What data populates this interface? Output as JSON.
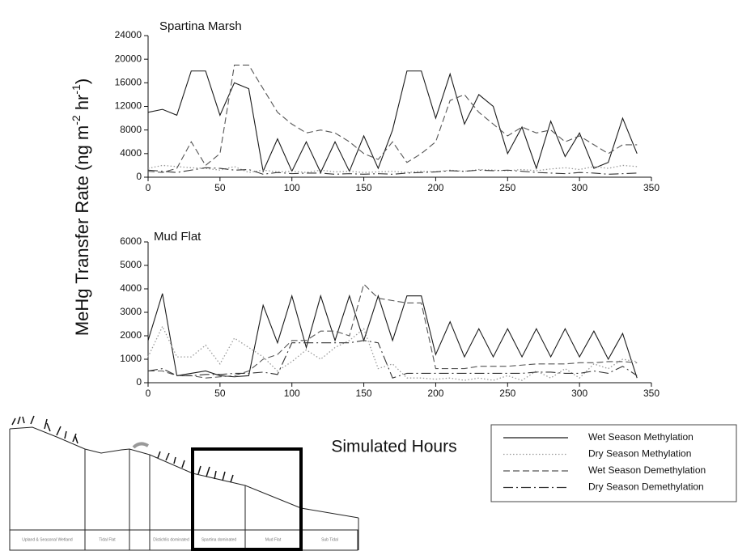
{
  "chart_data": [
    {
      "type": "line",
      "title": "Spartina Marsh",
      "ylabel_parts": [
        {
          "text": "MeHg Transfer Rate (ng m"
        },
        {
          "text": "-2",
          "sup": true
        },
        {
          "text": " hr"
        },
        {
          "text": "-1",
          "sup": true
        },
        {
          "text": ")"
        }
      ],
      "x": [
        0,
        10,
        20,
        30,
        40,
        50,
        60,
        70,
        80,
        90,
        100,
        110,
        120,
        130,
        140,
        150,
        160,
        170,
        180,
        190,
        200,
        210,
        220,
        230,
        240,
        250,
        260,
        270,
        280,
        290,
        300,
        310,
        320,
        330,
        340
      ],
      "xlim": [
        0,
        350
      ],
      "xticks": [
        0,
        50,
        100,
        150,
        200,
        250,
        300,
        350
      ],
      "ylim": [
        0,
        24000
      ],
      "yticks": [
        0,
        4000,
        8000,
        12000,
        16000,
        20000,
        24000
      ],
      "series": [
        {
          "name": "Wet Season Methylation",
          "color": "#1a1a1a",
          "dash": "solid",
          "values": [
            11000,
            11500,
            10500,
            18000,
            18000,
            10500,
            16000,
            15000,
            1000,
            6500,
            1000,
            6000,
            800,
            6000,
            1000,
            7000,
            1500,
            8000,
            18000,
            18000,
            10000,
            17500,
            9000,
            14000,
            12000,
            4000,
            8500,
            1500,
            9500,
            3500,
            7500,
            1500,
            2500,
            10000,
            4000
          ]
        },
        {
          "name": "Dry Season Methylation",
          "color": "#9a9a9a",
          "dash": "dotted",
          "values": [
            1500,
            2000,
            1800,
            1600,
            1500,
            1200,
            1800,
            800,
            1200,
            900,
            1000,
            800,
            1200,
            900,
            1000,
            800,
            900,
            1000,
            800,
            1000,
            900,
            1200,
            1000,
            1300,
            1200,
            1100,
            1300,
            1100,
            1400,
            1600,
            1300,
            1800,
            1500,
            2000,
            1800
          ]
        },
        {
          "name": "Wet Season Demethylation",
          "color": "#555555",
          "dash": "dashed",
          "values": [
            1000,
            800,
            1500,
            6000,
            2000,
            4000,
            19000,
            19000,
            15000,
            11000,
            9000,
            7500,
            8000,
            7500,
            6000,
            4000,
            3000,
            6000,
            2500,
            4000,
            6000,
            13000,
            14000,
            11000,
            9000,
            7000,
            8500,
            7500,
            8000,
            6000,
            7000,
            5500,
            4000,
            5500,
            5500
          ]
        },
        {
          "name": "Dry Season Demethylation",
          "color": "#333333",
          "dash": "dashdot",
          "values": [
            1200,
            1000,
            800,
            1200,
            1600,
            1500,
            1200,
            1300,
            500,
            800,
            600,
            700,
            700,
            500,
            600,
            500,
            600,
            500,
            700,
            800,
            900,
            1100,
            1000,
            1200,
            1100,
            1200,
            1000,
            800,
            700,
            600,
            800,
            700,
            500,
            600,
            700
          ]
        }
      ]
    },
    {
      "type": "line",
      "title": "Mud Flat",
      "xlabel": "Simulated Hours",
      "x": [
        0,
        10,
        20,
        30,
        40,
        50,
        60,
        70,
        80,
        90,
        100,
        110,
        120,
        130,
        140,
        150,
        160,
        170,
        180,
        190,
        200,
        210,
        220,
        230,
        240,
        250,
        260,
        270,
        280,
        290,
        300,
        310,
        320,
        330,
        340
      ],
      "xlim": [
        0,
        350
      ],
      "xticks": [
        0,
        50,
        100,
        150,
        200,
        250,
        300,
        350
      ],
      "ylim": [
        0,
        6000
      ],
      "yticks": [
        0,
        1000,
        2000,
        3000,
        4000,
        5000,
        6000
      ],
      "series": [
        {
          "name": "Wet Season Methylation",
          "color": "#1a1a1a",
          "dash": "solid",
          "values": [
            1800,
            3800,
            300,
            400,
            500,
            300,
            250,
            300,
            3300,
            1700,
            3700,
            1500,
            3700,
            1800,
            3700,
            1800,
            3700,
            1800,
            3700,
            3700,
            1200,
            2600,
            1100,
            2300,
            1100,
            2300,
            1100,
            2300,
            1100,
            2300,
            1100,
            2200,
            1000,
            2100,
            200
          ]
        },
        {
          "name": "Dry Season Methylation",
          "color": "#9a9a9a",
          "dash": "dotted",
          "values": [
            1100,
            2400,
            1100,
            1100,
            1600,
            800,
            1900,
            1500,
            1100,
            500,
            900,
            1400,
            1000,
            1500,
            1800,
            2300,
            600,
            800,
            200,
            200,
            150,
            200,
            100,
            200,
            100,
            300,
            100,
            500,
            200,
            600,
            200,
            800,
            600,
            1000,
            900
          ]
        },
        {
          "name": "Wet Season Demethylation",
          "color": "#555555",
          "dash": "dashed",
          "values": [
            500,
            500,
            300,
            300,
            200,
            250,
            300,
            500,
            1000,
            1200,
            1800,
            1800,
            2200,
            2200,
            2000,
            4200,
            3600,
            3500,
            3400,
            3400,
            600,
            600,
            600,
            700,
            700,
            700,
            750,
            800,
            800,
            800,
            850,
            850,
            900,
            900,
            850
          ]
        },
        {
          "name": "Dry Season Demethylation",
          "color": "#333333",
          "dash": "dashdot",
          "values": [
            500,
            600,
            300,
            300,
            350,
            350,
            400,
            400,
            450,
            350,
            1700,
            1700,
            1700,
            1700,
            1700,
            1800,
            1700,
            200,
            400,
            400,
            400,
            400,
            400,
            400,
            400,
            400,
            400,
            450,
            450,
            400,
            400,
            500,
            400,
            700,
            300
          ]
        }
      ]
    }
  ],
  "diagram": {
    "zones": [
      "Upland & Seasonal Wetland",
      "Tidal Flat",
      "Distichlis dominated",
      "Spartina dominated",
      "Mud Flat",
      "Sub Tidal"
    ]
  }
}
